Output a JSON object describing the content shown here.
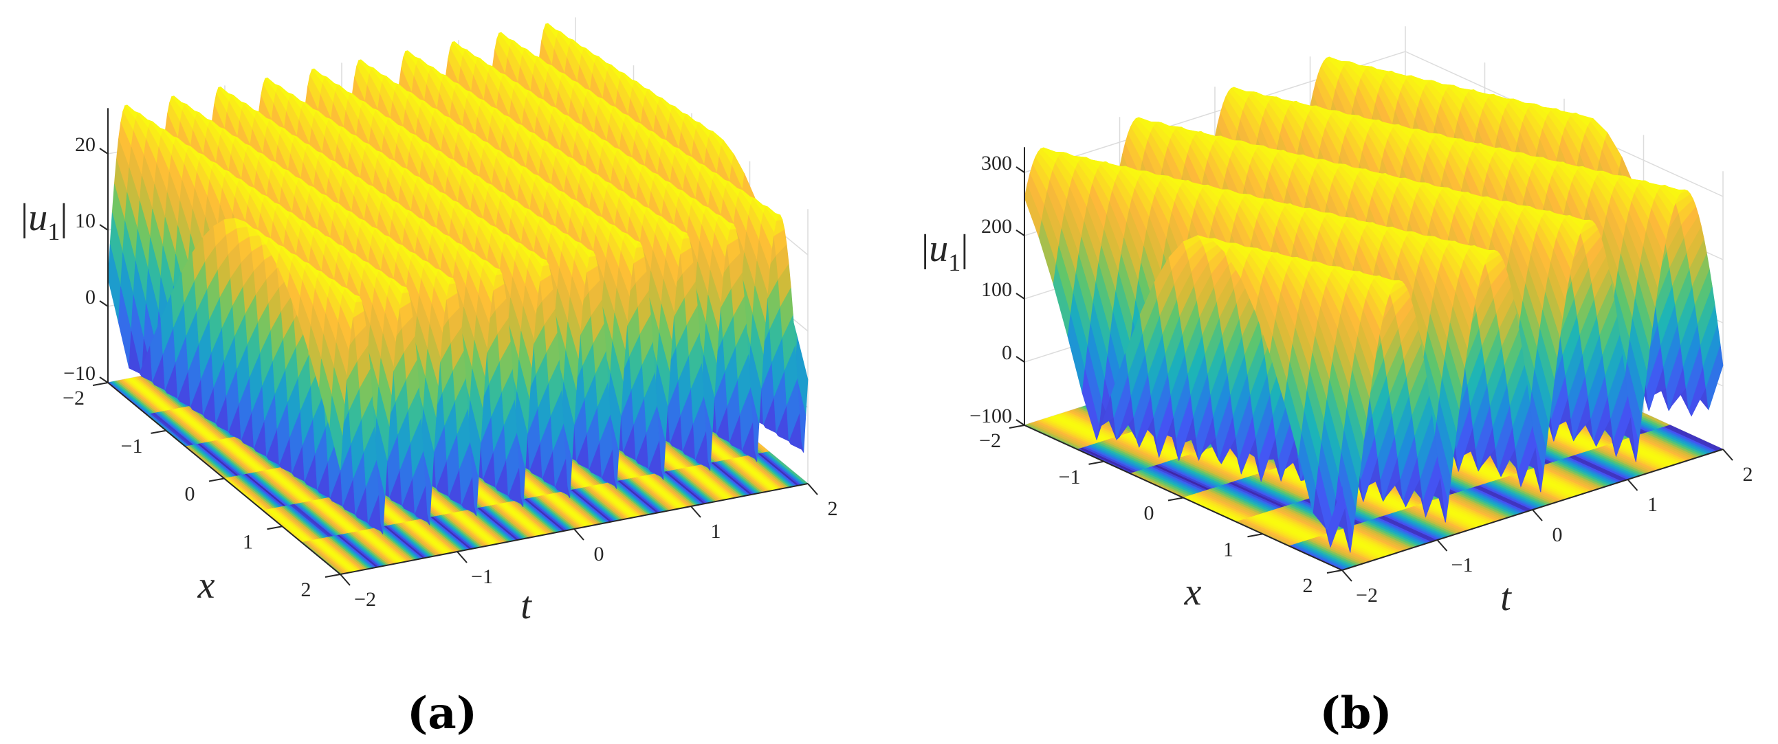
{
  "chart_data": [
    {
      "type": "surface",
      "caption": "(a)",
      "xlabel": "x",
      "ylabel": "t",
      "zlabel": {
        "left": "|",
        "var": "u",
        "sub": "1",
        "right": "|"
      },
      "x_range": [
        -2,
        2
      ],
      "t_range": [
        -2,
        2
      ],
      "zlim": [
        -10,
        26
      ],
      "x_ticks": [
        "−2",
        "−1",
        "0",
        "1",
        "2"
      ],
      "t_ticks": [
        "−2",
        "−1",
        "0",
        "1",
        "2"
      ],
      "z_ticks": [
        "−10",
        "0",
        "10",
        "20"
      ],
      "z_tick_values": [
        -10,
        0,
        10,
        20
      ],
      "surface": {
        "z_min": -8,
        "z_max": 26,
        "ridges": 10,
        "skew": 0.1
      },
      "contour_plane": "projected on z = −10",
      "colormap": [
        "#3e26a8",
        "#4455f5",
        "#1e8ddb",
        "#1cb4b8",
        "#62c66a",
        "#d4bb38",
        "#fdb93a",
        "#f9fb0e"
      ]
    },
    {
      "type": "surface",
      "caption": "(b)",
      "xlabel": "x",
      "ylabel": "t",
      "zlabel": {
        "left": "|",
        "var": "u",
        "sub": "1",
        "right": "|"
      },
      "x_range": [
        -2,
        2
      ],
      "t_range": [
        -2,
        2
      ],
      "zlim": [
        -100,
        340
      ],
      "x_ticks": [
        "−2",
        "−1",
        "0",
        "1",
        "2"
      ],
      "t_ticks": [
        "−2",
        "−1",
        "0",
        "1",
        "2"
      ],
      "z_ticks": [
        "−100",
        "0",
        "100",
        "200",
        "300"
      ],
      "z_tick_values": [
        -100,
        0,
        100,
        200,
        300
      ],
      "surface": {
        "z_min": -80,
        "z_max": 330,
        "ridges": 4,
        "skew": 0.35
      },
      "contour_plane": "projected on z = −100",
      "colormap": [
        "#3e26a8",
        "#4455f5",
        "#1e8ddb",
        "#1cb4b8",
        "#62c66a",
        "#d4bb38",
        "#fdb93a",
        "#f9fb0e"
      ]
    }
  ]
}
